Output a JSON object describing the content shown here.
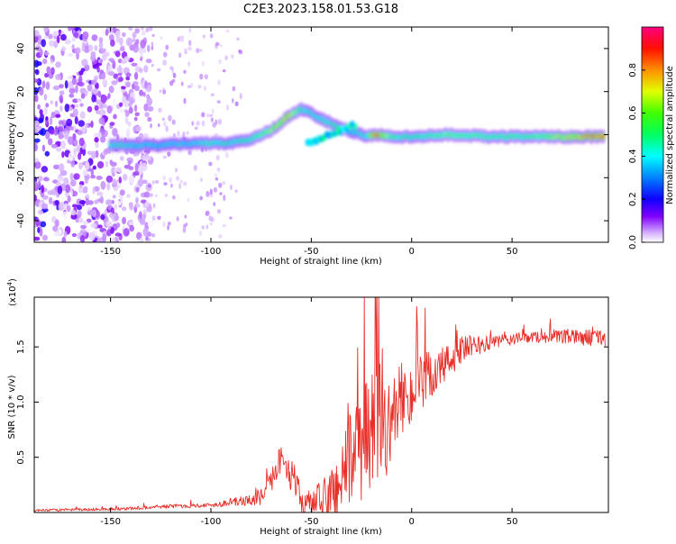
{
  "title": "C2E3.2023.158.01.53.G18",
  "chart_data": [
    {
      "type": "heatmap",
      "xlabel": "Height of straight line (km)",
      "ylabel": "Frequency (Hz)",
      "xlim": [
        -188,
        98
      ],
      "ylim": [
        -50,
        50
      ],
      "xticks": [
        -150,
        -100,
        -50,
        0,
        50
      ],
      "yticks": [
        -40,
        -20,
        0,
        20,
        40
      ],
      "colorbar": {
        "label": "Normalized spectral amplitude",
        "ticks": [
          "0.0",
          "0.2",
          "0.4",
          "0.6",
          "0.8"
        ],
        "tick_values": [
          0.0,
          0.2,
          0.4,
          0.6,
          0.8
        ],
        "range": [
          0,
          1
        ],
        "colormap": [
          "#ffffff",
          "#8000ff",
          "#0000ff",
          "#00ffff",
          "#00ff00",
          "#ffff00",
          "#ff8000",
          "#ff0000",
          "#ff0080"
        ]
      },
      "ridge": {
        "x": [
          -150,
          -130,
          -110,
          -100,
          -90,
          -80,
          -70,
          -62,
          -55,
          -48,
          -42,
          -35,
          -28,
          -22,
          -18,
          -10,
          0,
          20,
          40,
          60,
          80,
          96
        ],
        "y": [
          -5,
          -5,
          -4,
          -4,
          -4,
          -2,
          2,
          8,
          12,
          9,
          6,
          3,
          1,
          -1,
          0,
          -1,
          -1,
          0,
          -1,
          -1,
          -1,
          -1
        ],
        "amplitude": [
          0.45,
          0.4,
          0.4,
          0.5,
          0.45,
          0.5,
          0.65,
          0.8,
          0.5,
          0.45,
          0.5,
          0.45,
          0.4,
          0.5,
          0.95,
          0.55,
          0.5,
          0.6,
          0.55,
          0.55,
          0.75,
          0.95
        ]
      },
      "noise_region": {
        "x": [
          -188,
          -130
        ],
        "y": [
          -50,
          50
        ]
      }
    },
    {
      "type": "line",
      "xlabel": "Height of straight line (km)",
      "ylabel": "SNR (10 * v/v)",
      "scale_label": "(x10",
      "scale_exp": "4",
      "scale_close": ")",
      "xlim": [
        -188,
        98
      ],
      "ylim": [
        0,
        1.95
      ],
      "xticks": [
        -150,
        -100,
        -50,
        0,
        50
      ],
      "yticks": [
        0.5,
        1.0,
        1.5
      ],
      "ytick_labels": [
        "0.5",
        "1.0",
        "1.5"
      ],
      "color": "#e8302a",
      "envelope": {
        "x": [
          -188,
          -160,
          -140,
          -120,
          -100,
          -90,
          -80,
          -75,
          -70,
          -66,
          -62,
          -58,
          -55,
          -50,
          -45,
          -40,
          -35,
          -30,
          -25,
          -20,
          -18,
          -15,
          -12,
          -10,
          -5,
          0,
          5,
          10,
          15,
          20,
          25,
          30,
          40,
          50,
          60,
          70,
          80,
          90,
          96
        ],
        "y": [
          0.02,
          0.03,
          0.04,
          0.06,
          0.07,
          0.1,
          0.12,
          0.15,
          0.3,
          0.5,
          0.45,
          0.3,
          0.12,
          0.1,
          0.12,
          0.2,
          0.4,
          0.6,
          0.7,
          0.8,
          1.0,
          0.85,
          0.8,
          0.95,
          1.1,
          1.15,
          1.2,
          1.3,
          1.35,
          1.42,
          1.5,
          1.52,
          1.55,
          1.58,
          1.6,
          1.6,
          1.6,
          1.6,
          1.6
        ]
      },
      "noise_amplitude": {
        "x": [
          -188,
          -100,
          -80,
          -60,
          -50,
          -40,
          -30,
          -20,
          -10,
          0,
          10,
          20,
          40,
          60,
          96
        ],
        "y": [
          0.01,
          0.02,
          0.05,
          0.15,
          0.12,
          0.3,
          0.45,
          0.6,
          0.35,
          0.3,
          0.25,
          0.15,
          0.06,
          0.05,
          0.08
        ]
      }
    }
  ]
}
